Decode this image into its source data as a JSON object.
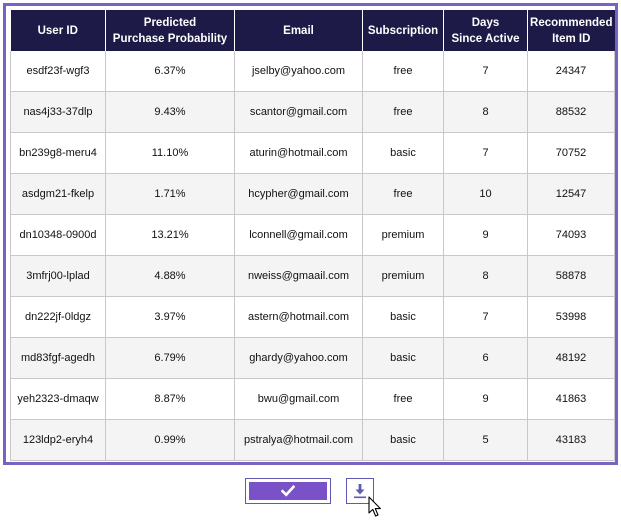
{
  "table": {
    "headers": [
      [
        "User ID"
      ],
      [
        "Predicted",
        "Purchase Probability"
      ],
      [
        "Email"
      ],
      [
        "Subscription"
      ],
      [
        "Days",
        "Since Active"
      ],
      [
        "Recommended",
        "Item ID"
      ]
    ],
    "rows": [
      [
        "esdf23f-wgf3",
        "6.37%",
        "jselby@yahoo.com",
        "free",
        "7",
        "24347"
      ],
      [
        "nas4j33-37dlp",
        "9.43%",
        "scantor@gmail.com",
        "free",
        "8",
        "88532"
      ],
      [
        "bn239g8-meru4",
        "11.10%",
        "aturin@hotmail.com",
        "basic",
        "7",
        "70752"
      ],
      [
        "asdgm21-fkelp",
        "1.71%",
        "hcypher@gmail.com",
        "free",
        "10",
        "12547"
      ],
      [
        "dn10348-0900d",
        "13.21%",
        "lconnell@gmail.com",
        "premium",
        "9",
        "74093"
      ],
      [
        "3mfrj00-lplad",
        "4.88%",
        "nweiss@gmaail.com",
        "premium",
        "8",
        "58878"
      ],
      [
        "dn222jf-0ldgz",
        "3.97%",
        "astern@hotmail.com",
        "basic",
        "7",
        "53998"
      ],
      [
        "md83fgf-agedh",
        "6.79%",
        "ghardy@yahoo.com",
        "basic",
        "6",
        "48192"
      ],
      [
        "yeh2323-dmaqw",
        "8.87%",
        "bwu@gmail.com",
        "free",
        "9",
        "41863"
      ],
      [
        "123ldp2-eryh4",
        "0.99%",
        "pstralya@hotmail.com",
        "basic",
        "5",
        "43183"
      ]
    ]
  },
  "actions": {
    "confirm_icon": "checkmark-icon",
    "download_icon": "download-icon",
    "accent_color": "#7a52c8",
    "header_color": "#1e1a47"
  }
}
